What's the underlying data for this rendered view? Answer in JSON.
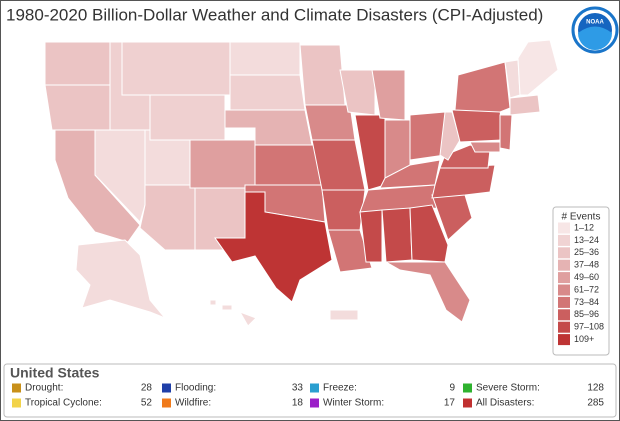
{
  "header": {
    "title": "1980-2020 Billion-Dollar Weather and Climate Disasters (CPI-Adjusted)",
    "logo": "NOAA"
  },
  "legend": {
    "title": "# Events",
    "bins": [
      {
        "label": "1–12",
        "color": "#f7e6e6"
      },
      {
        "label": "13–24",
        "color": "#f0d3d3"
      },
      {
        "label": "25–36",
        "color": "#ebc4c4"
      },
      {
        "label": "37–48",
        "color": "#e5b3b3"
      },
      {
        "label": "49–60",
        "color": "#df9f9f"
      },
      {
        "label": "61–72",
        "color": "#d88a8a"
      },
      {
        "label": "73–84",
        "color": "#d27575"
      },
      {
        "label": "85–96",
        "color": "#cb5f5f"
      },
      {
        "label": "97–108",
        "color": "#c44a4a"
      },
      {
        "label": "109+",
        "color": "#be3434"
      }
    ]
  },
  "summary": {
    "title": "United States",
    "items": [
      {
        "label": "Drought:",
        "value": 28,
        "color": "#c8901a"
      },
      {
        "label": "Flooding:",
        "value": 33,
        "color": "#1f3fa8"
      },
      {
        "label": "Freeze:",
        "value": 9,
        "color": "#2a9fd0"
      },
      {
        "label": "Severe Storm:",
        "value": 128,
        "color": "#2fb22f"
      },
      {
        "label": "Tropical Cyclone:",
        "value": 52,
        "color": "#f2d34a"
      },
      {
        "label": "Wildfire:",
        "value": 18,
        "color": "#f07a1a"
      },
      {
        "label": "Winter Storm:",
        "value": 17,
        "color": "#9b1fc8"
      },
      {
        "label": "All Disasters:",
        "value": 285,
        "color": "#c03030"
      }
    ]
  }
}
